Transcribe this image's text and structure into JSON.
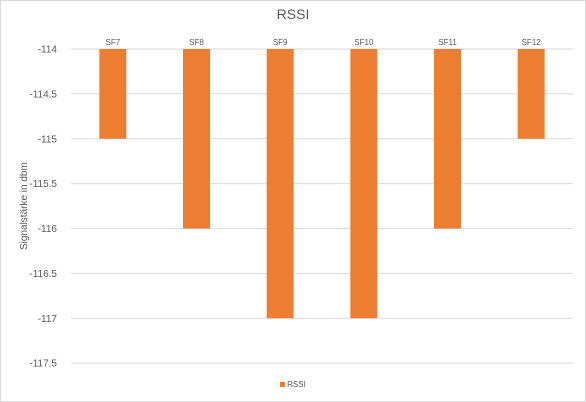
{
  "chart_data": {
    "type": "bar",
    "title": "RSSI",
    "xlabel": "",
    "ylabel": "Signalstärke in dbm",
    "categories": [
      "SF7",
      "SF8",
      "SF9",
      "SF10",
      "SF11",
      "SF12"
    ],
    "series": [
      {
        "name": "RSSI",
        "values": [
          -115,
          -116,
          -117,
          -117,
          -116,
          -115
        ],
        "color": "#ed7d31"
      }
    ],
    "ylim": [
      -118,
      -114
    ],
    "y_ticks": [
      "-114",
      "-114.5",
      "-115",
      "-115.5",
      "-116",
      "-116.5",
      "-117",
      "-117.5"
    ],
    "x_axis_position": "top",
    "grid": true,
    "legend_position": "bottom"
  }
}
